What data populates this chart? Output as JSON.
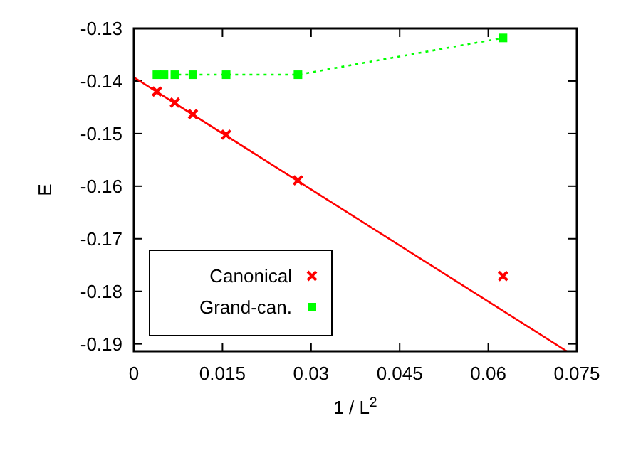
{
  "chart_data": {
    "type": "scatter",
    "xlabel": "1 / L$^{2}$",
    "ylabel": "E",
    "xlim": [
      0,
      0.075
    ],
    "ylim": [
      -0.1914,
      -0.13
    ],
    "xticks": [
      0,
      0.015,
      0.03,
      0.045,
      0.06,
      0.075
    ],
    "yticks": [
      -0.13,
      -0.14,
      -0.15,
      -0.16,
      -0.17,
      -0.18,
      -0.19
    ],
    "grid": false,
    "legend": "bottom left",
    "series": [
      {
        "name": "Canonical",
        "color": "#ff0000",
        "marker": "cross",
        "x": [
          0.0039,
          0.00694,
          0.01,
          0.015625,
          0.02778,
          0.0625
        ],
        "values": [
          -0.142,
          -0.1441,
          -0.1463,
          -0.1502,
          -0.1589,
          -0.1771
        ]
      },
      {
        "name": "Grand-can.",
        "type": "line",
        "color": "#00ff00",
        "marker": "square",
        "line_style": "dotted",
        "x": [
          0.0039,
          0.0051,
          0.00694,
          0.01,
          0.015625,
          0.02778,
          0.0625
        ],
        "values": [
          -0.1388,
          -0.1388,
          -0.1388,
          -0.1388,
          -0.1388,
          -0.1388,
          -0.1318
        ]
      },
      {
        "type": "line",
        "color": "#ff0000",
        "marker": "none",
        "line_style": "solid",
        "x": [
          0,
          0.0733
        ],
        "values": [
          -0.1393,
          -0.1914
        ]
      }
    ]
  }
}
